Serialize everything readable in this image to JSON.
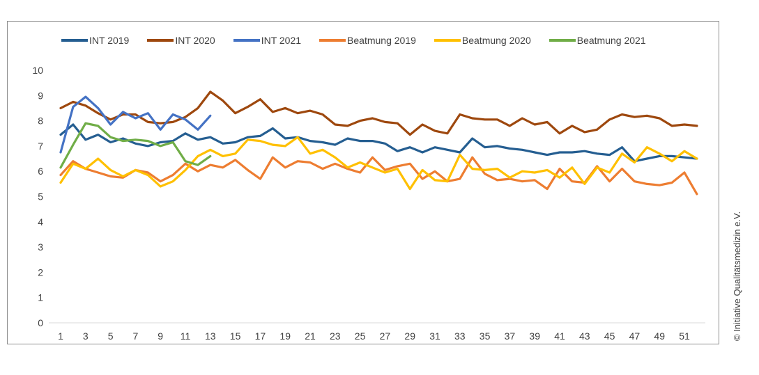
{
  "chart_data": {
    "type": "line",
    "title": "",
    "xlabel": "",
    "ylabel": "",
    "ylim": [
      0,
      10
    ],
    "yticks": [
      "0",
      "1",
      "2",
      "3",
      "4",
      "5",
      "6",
      "7",
      "8",
      "9",
      "10"
    ],
    "xticks": [
      "1",
      "3",
      "5",
      "7",
      "9",
      "11",
      "13",
      "15",
      "17",
      "19",
      "21",
      "23",
      "25",
      "27",
      "29",
      "31",
      "33",
      "35",
      "37",
      "39",
      "41",
      "43",
      "45",
      "47",
      "49",
      "51"
    ],
    "x_range": [
      1,
      52
    ],
    "series": [
      {
        "name": "INT 2019",
        "color": "#255e91",
        "values": [
          7.45,
          7.85,
          7.25,
          7.45,
          7.15,
          7.3,
          7.1,
          7.0,
          7.15,
          7.2,
          7.5,
          7.25,
          7.35,
          7.1,
          7.15,
          7.35,
          7.4,
          7.7,
          7.3,
          7.35,
          7.2,
          7.15,
          7.05,
          7.3,
          7.2,
          7.2,
          7.1,
          6.8,
          6.95,
          6.75,
          6.95,
          6.85,
          6.75,
          7.3,
          6.95,
          7.0,
          6.9,
          6.85,
          6.75,
          6.65,
          6.75,
          6.75,
          6.8,
          6.7,
          6.65,
          6.95,
          6.4,
          6.5,
          6.6,
          6.6,
          6.55,
          6.5
        ]
      },
      {
        "name": "INT 2020",
        "color": "#9e480e",
        "values": [
          8.5,
          8.75,
          8.6,
          8.3,
          8.05,
          8.25,
          8.25,
          7.95,
          7.9,
          7.95,
          8.15,
          8.5,
          9.15,
          8.8,
          8.3,
          8.55,
          8.85,
          8.35,
          8.5,
          8.3,
          8.4,
          8.25,
          7.85,
          7.8,
          8.0,
          8.1,
          7.95,
          7.9,
          7.45,
          7.85,
          7.6,
          7.5,
          8.25,
          8.1,
          8.05,
          8.05,
          7.8,
          8.1,
          7.85,
          7.95,
          7.5,
          7.8,
          7.55,
          7.65,
          8.05,
          8.25,
          8.15,
          8.2,
          8.1,
          7.8,
          7.85,
          7.8
        ]
      },
      {
        "name": "INT 2021",
        "color": "#4472c4",
        "values": [
          6.75,
          8.55,
          8.95,
          8.5,
          7.85,
          8.35,
          8.1,
          8.3,
          7.65,
          8.25,
          8.05,
          7.65,
          8.2
        ]
      },
      {
        "name": "Beatmung 2019",
        "color": "#ed7d31",
        "values": [
          5.85,
          6.4,
          6.1,
          5.95,
          5.8,
          5.75,
          6.05,
          5.95,
          5.6,
          5.85,
          6.3,
          6.0,
          6.25,
          6.15,
          6.45,
          6.05,
          5.7,
          6.55,
          6.15,
          6.4,
          6.35,
          6.1,
          6.3,
          6.1,
          5.95,
          6.55,
          6.05,
          6.2,
          6.3,
          5.7,
          6.0,
          5.6,
          5.7,
          6.55,
          5.9,
          5.65,
          5.7,
          5.6,
          5.65,
          5.3,
          6.1,
          5.6,
          5.55,
          6.2,
          5.6,
          6.1,
          5.6,
          5.5,
          5.45,
          5.55,
          5.95,
          5.1
        ]
      },
      {
        "name": "Beatmung 2020",
        "color": "#ffc000",
        "values": [
          5.55,
          6.3,
          6.1,
          6.5,
          6.05,
          5.8,
          6.05,
          5.85,
          5.4,
          5.6,
          6.05,
          6.6,
          6.85,
          6.6,
          6.7,
          7.25,
          7.2,
          7.05,
          7.0,
          7.35,
          6.7,
          6.85,
          6.55,
          6.15,
          6.35,
          6.15,
          5.95,
          6.1,
          5.3,
          6.05,
          5.65,
          5.6,
          6.65,
          6.1,
          6.05,
          6.1,
          5.75,
          6.0,
          5.95,
          6.05,
          5.75,
          6.15,
          5.5,
          6.15,
          5.95,
          6.7,
          6.35,
          6.95,
          6.7,
          6.4,
          6.8,
          6.5
        ]
      },
      {
        "name": "Beatmung 2021",
        "color": "#70ad47",
        "values": [
          6.15,
          7.05,
          7.9,
          7.8,
          7.35,
          7.2,
          7.25,
          7.2,
          7.0,
          7.15,
          6.4,
          6.25,
          6.6
        ]
      }
    ]
  },
  "copyright": "© Initiative Qualitätsmedizin e.V."
}
